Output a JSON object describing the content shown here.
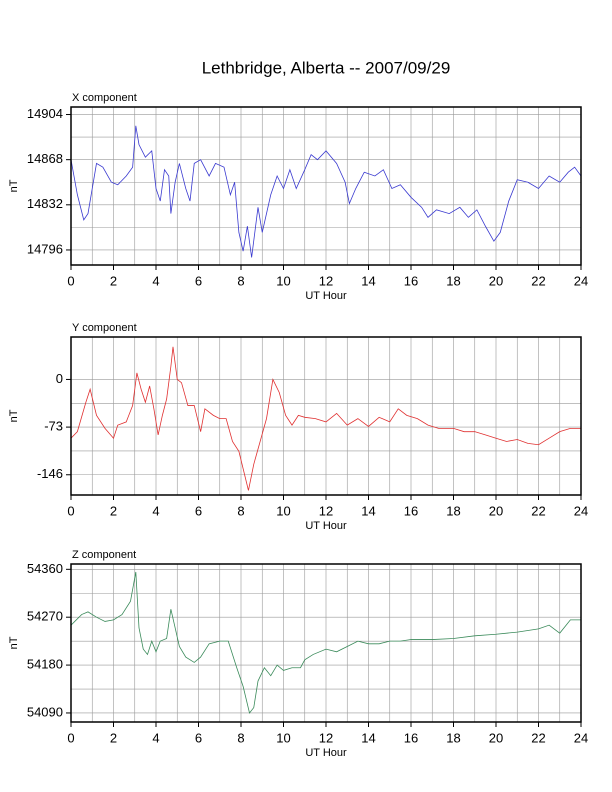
{
  "title": "Lethbridge, Alberta -- 2007/09/29",
  "chart_data": [
    {
      "type": "line",
      "title": "X component",
      "xlabel": "UT Hour",
      "ylabel": "nT",
      "color": "#3a3ad0",
      "xlim": [
        0,
        24
      ],
      "xticks": [
        0,
        2,
        4,
        6,
        8,
        10,
        12,
        14,
        16,
        18,
        20,
        22,
        24
      ],
      "ylim": [
        14784,
        14910
      ],
      "yticks": [
        14796,
        14832,
        14868,
        14904
      ],
      "grid": true,
      "x": [
        0,
        0.3,
        0.6,
        0.8,
        1.2,
        1.5,
        1.9,
        2.2,
        2.6,
        2.9,
        3.05,
        3.2,
        3.5,
        3.8,
        4.0,
        4.2,
        4.4,
        4.6,
        4.7,
        4.9,
        5.1,
        5.4,
        5.6,
        5.8,
        6.1,
        6.5,
        6.8,
        7.2,
        7.5,
        7.7,
        7.9,
        8.1,
        8.3,
        8.5,
        8.8,
        9.0,
        9.4,
        9.7,
        10.0,
        10.3,
        10.6,
        11.0,
        11.3,
        11.6,
        12.0,
        12.5,
        12.9,
        13.1,
        13.4,
        13.8,
        14.3,
        14.7,
        15.1,
        15.5,
        16.0,
        16.5,
        16.8,
        17.2,
        17.8,
        18.3,
        18.7,
        19.1,
        19.5,
        19.9,
        20.2,
        20.6,
        21.0,
        21.5,
        22.0,
        22.5,
        23.0,
        23.4,
        23.7,
        24
      ],
      "values": [
        14868,
        14840,
        14820,
        14825,
        14865,
        14862,
        14850,
        14848,
        14855,
        14862,
        14895,
        14880,
        14870,
        14875,
        14845,
        14835,
        14860,
        14855,
        14825,
        14850,
        14865,
        14845,
        14835,
        14865,
        14868,
        14855,
        14865,
        14862,
        14840,
        14850,
        14810,
        14795,
        14815,
        14790,
        14830,
        14810,
        14840,
        14855,
        14845,
        14860,
        14845,
        14860,
        14872,
        14868,
        14875,
        14865,
        14850,
        14833,
        14845,
        14858,
        14855,
        14860,
        14845,
        14848,
        14838,
        14830,
        14822,
        14828,
        14825,
        14830,
        14822,
        14828,
        14815,
        14803,
        14810,
        14835,
        14852,
        14850,
        14845,
        14855,
        14850,
        14858,
        14862,
        14855
      ]
    },
    {
      "type": "line",
      "title": "Y component",
      "xlabel": "UT Hour",
      "ylabel": "nT",
      "color": "#e03030",
      "xlim": [
        0,
        24
      ],
      "xticks": [
        0,
        2,
        4,
        6,
        8,
        10,
        12,
        14,
        16,
        18,
        20,
        22,
        24
      ],
      "ylim": [
        -177,
        65
      ],
      "yticks": [
        -146,
        -73,
        0
      ],
      "grid": true,
      "x": [
        0,
        0.3,
        0.7,
        0.9,
        1.2,
        1.6,
        2.0,
        2.2,
        2.6,
        2.9,
        3.1,
        3.3,
        3.5,
        3.7,
        3.9,
        4.1,
        4.3,
        4.5,
        4.7,
        4.8,
        5.0,
        5.2,
        5.5,
        5.8,
        6.1,
        6.3,
        6.7,
        7.0,
        7.3,
        7.6,
        7.9,
        8.2,
        8.35,
        8.6,
        8.9,
        9.2,
        9.5,
        9.8,
        10.1,
        10.4,
        10.7,
        11.0,
        11.5,
        12.0,
        12.5,
        13.0,
        13.5,
        14.0,
        14.5,
        15.0,
        15.4,
        15.8,
        16.3,
        16.8,
        17.3,
        18.0,
        18.5,
        19.0,
        19.5,
        20.0,
        20.5,
        21.0,
        21.5,
        22.0,
        22.5,
        23.0,
        23.5,
        24.0
      ],
      "values": [
        -90,
        -80,
        -35,
        -15,
        -55,
        -75,
        -90,
        -70,
        -65,
        -40,
        10,
        -15,
        -35,
        -10,
        -45,
        -85,
        -55,
        -30,
        20,
        50,
        0,
        -5,
        -40,
        -40,
        -80,
        -45,
        -55,
        -60,
        -60,
        -95,
        -110,
        -150,
        -170,
        -130,
        -95,
        -60,
        0,
        -20,
        -55,
        -70,
        -55,
        -58,
        -60,
        -65,
        -52,
        -70,
        -60,
        -72,
        -58,
        -65,
        -45,
        -55,
        -60,
        -70,
        -75,
        -75,
        -80,
        -80,
        -85,
        -90,
        -95,
        -92,
        -98,
        -100,
        -90,
        -80,
        -75,
        -75
      ]
    },
    {
      "type": "line",
      "title": "Z component",
      "xlabel": "UT Hour",
      "ylabel": "nT",
      "color": "#3a8a5a",
      "xlim": [
        0,
        24
      ],
      "xticks": [
        0,
        2,
        4,
        6,
        8,
        10,
        12,
        14,
        16,
        18,
        20,
        22,
        24
      ],
      "ylim": [
        54073,
        54370
      ],
      "yticks": [
        54090,
        54180,
        54270,
        54360
      ],
      "grid": true,
      "x": [
        0,
        0.5,
        0.8,
        1.2,
        1.6,
        2.0,
        2.4,
        2.8,
        3.05,
        3.2,
        3.4,
        3.6,
        3.8,
        4.0,
        4.2,
        4.5,
        4.7,
        4.9,
        5.1,
        5.4,
        5.8,
        6.1,
        6.5,
        7.0,
        7.4,
        7.8,
        8.1,
        8.4,
        8.6,
        8.8,
        9.1,
        9.4,
        9.7,
        10.0,
        10.4,
        10.8,
        11.0,
        11.4,
        12.0,
        12.5,
        13.0,
        13.5,
        14.0,
        14.5,
        15.0,
        15.5,
        16.0,
        17.0,
        18.0,
        19.0,
        20.0,
        21.0,
        22.0,
        22.5,
        23.0,
        23.5,
        24.0
      ],
      "values": [
        54255,
        54275,
        54280,
        54270,
        54262,
        54265,
        54275,
        54300,
        54355,
        54250,
        54210,
        54200,
        54225,
        54205,
        54225,
        54230,
        54285,
        54250,
        54215,
        54195,
        54185,
        54195,
        54220,
        54225,
        54225,
        54175,
        54140,
        54090,
        54100,
        54150,
        54175,
        54160,
        54180,
        54170,
        54175,
        54175,
        54190,
        54200,
        54210,
        54205,
        54215,
        54225,
        54220,
        54220,
        54225,
        54225,
        54228,
        54228,
        54230,
        54235,
        54238,
        54242,
        54248,
        54255,
        54240,
        54265,
        54265
      ]
    }
  ]
}
